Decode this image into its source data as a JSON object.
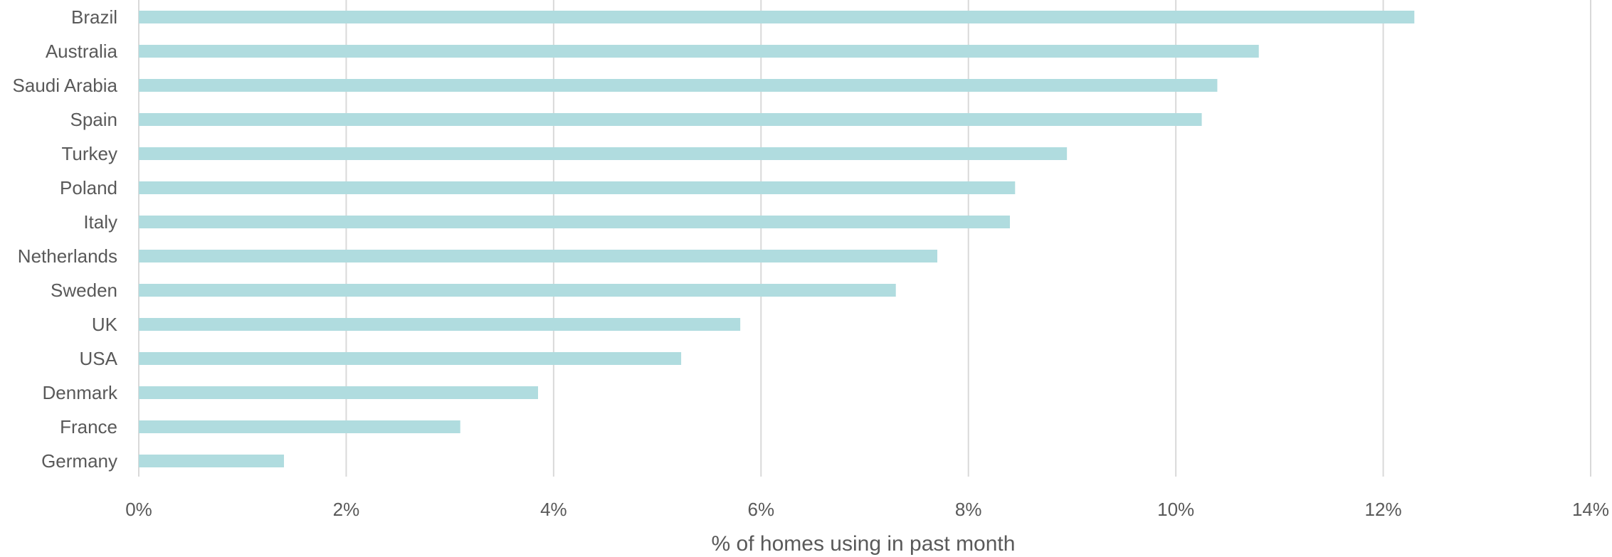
{
  "chart_data": {
    "type": "bar",
    "orientation": "horizontal",
    "categories": [
      "Brazil",
      "Australia",
      "Saudi Arabia",
      "Spain",
      "Turkey",
      "Poland",
      "Italy",
      "Netherlands",
      "Sweden",
      "UK",
      "USA",
      "Denmark",
      "France",
      "Germany"
    ],
    "values": [
      12.3,
      10.8,
      10.4,
      10.25,
      8.95,
      8.45,
      8.4,
      7.7,
      7.3,
      5.8,
      5.23,
      3.85,
      3.1,
      1.4
    ],
    "xlabel": "% of homes using in past month",
    "xlim": [
      0,
      14
    ],
    "xticks": [
      "0%",
      "2%",
      "4%",
      "6%",
      "8%",
      "10%",
      "12%",
      "14%"
    ],
    "grid": "vertical",
    "legend": "none",
    "bar_color": "#b0dcdf"
  }
}
